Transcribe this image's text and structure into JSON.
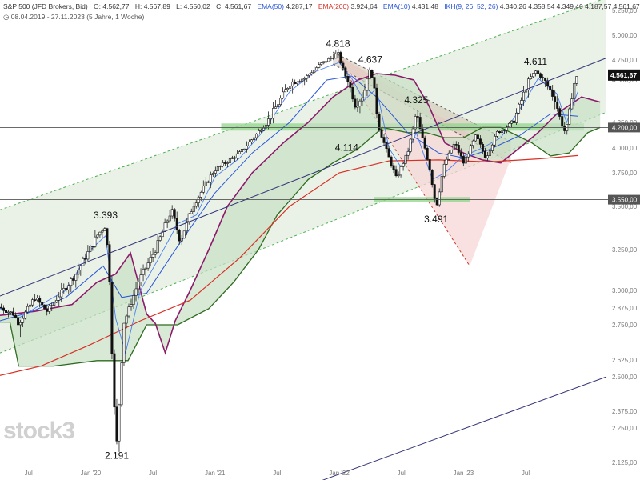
{
  "header": {
    "instrument": "S&P 500 (JFD Brokers, Bid)",
    "ohlc": {
      "open": "O: 4.562,77",
      "high": "H: 4.567,89",
      "low": "L: 4.550,02",
      "close": "C: 4.561,67"
    },
    "indicators": [
      {
        "label": "EMA(50)",
        "value": "4.287,17",
        "color": "#2a56d6"
      },
      {
        "label": "EMA(200)",
        "value": "3.924,64",
        "color": "#d93025"
      },
      {
        "label": "EMA(10)",
        "value": "4.431,48",
        "color": "#2a56d6"
      },
      {
        "label": "IKH(9, 26, 52, 26)",
        "value": "4.340,26  4.358,54  4.349,40  4.187,57  4.561,67",
        "color": "#2a56d6"
      }
    ],
    "period": "08.04.2019 - 27.11.2023",
    "range": "(5 Jahre, 1 Woche)"
  },
  "brand": "stock3",
  "colors": {
    "up": "#ffffff",
    "down": "#111111",
    "wick": "#222222",
    "ema50": "#2a56d6",
    "ema200": "#d93025",
    "ema10": "#2a56d6",
    "cloud_line_a": "#8b1a6b",
    "cloud_line_b": "#2e6b1f",
    "channel_fill": "#e6f0e3",
    "channel_edge": "#4caf50",
    "wedge_fill": "#f7d7d7",
    "wedge_edge": "#c0392b",
    "zone_fill": "#8fd68a",
    "trend": "#33337a"
  },
  "chart_data": {
    "type": "candlestick",
    "title": "S&P 500 (JFD Brokers, Bid)",
    "ylim": [
      2125,
      5375
    ],
    "y_ticks": [
      2125,
      2250,
      2375,
      2500,
      2625,
      2750,
      2875,
      3000,
      3250,
      3500,
      3750,
      4000,
      4250,
      4500,
      4750,
      5000,
      5250
    ],
    "y_tick_labels": [
      "2.125,00",
      "2.250,00",
      "2.375,00",
      "2.500,00",
      "2.625,00",
      "2.750,00",
      "2.875,00",
      "3.000,00",
      "3.250,00",
      "3.500,00",
      "3.750,00",
      "4.000,00",
      "4.250,00",
      "4.500,00",
      "4.750,00",
      "5.000,00",
      "5.250,00"
    ],
    "x_ticks": [
      {
        "label": "Jul",
        "t": 2019.5
      },
      {
        "label": "Jan '20",
        "t": 2020.0
      },
      {
        "label": "Jul",
        "t": 2020.5
      },
      {
        "label": "Jan '21",
        "t": 2021.0
      },
      {
        "label": "Jul",
        "t": 2021.5
      },
      {
        "label": "Jan '22",
        "t": 2022.0
      },
      {
        "label": "Jul",
        "t": 2022.5
      },
      {
        "label": "Jan '23",
        "t": 2023.0
      },
      {
        "label": "Jul",
        "t": 2023.5
      }
    ],
    "xlim": [
      2019.27,
      2024.15
    ],
    "price_path": [
      [
        2019.27,
        2880
      ],
      [
        2019.38,
        2830
      ],
      [
        2019.42,
        2760
      ],
      [
        2019.55,
        2950
      ],
      [
        2019.65,
        2850
      ],
      [
        2019.75,
        2970
      ],
      [
        2019.88,
        3100
      ],
      [
        2020.05,
        3330
      ],
      [
        2020.12,
        3393
      ],
      [
        2020.15,
        3100
      ],
      [
        2020.18,
        2480
      ],
      [
        2020.21,
        2191
      ],
      [
        2020.26,
        2750
      ],
      [
        2020.38,
        3050
      ],
      [
        2020.52,
        3250
      ],
      [
        2020.65,
        3480
      ],
      [
        2020.72,
        3300
      ],
      [
        2020.82,
        3500
      ],
      [
        2021.0,
        3780
      ],
      [
        2021.2,
        3950
      ],
      [
        2021.38,
        4200
      ],
      [
        2021.6,
        4480
      ],
      [
        2021.72,
        4520
      ],
      [
        2021.85,
        4700
      ],
      [
        2021.99,
        4818
      ],
      [
        2022.05,
        4550
      ],
      [
        2022.13,
        4350
      ],
      [
        2022.2,
        4420
      ],
      [
        2022.25,
        4637
      ],
      [
        2022.32,
        4200
      ],
      [
        2022.4,
        3900
      ],
      [
        2022.46,
        3700
      ],
      [
        2022.55,
        3950
      ],
      [
        2022.62,
        4325
      ],
      [
        2022.7,
        3950
      ],
      [
        2022.78,
        3491
      ],
      [
        2022.85,
        3850
      ],
      [
        2022.93,
        4050
      ],
      [
        2023.0,
        3850
      ],
      [
        2023.1,
        4120
      ],
      [
        2023.18,
        3900
      ],
      [
        2023.27,
        4150
      ],
      [
        2023.4,
        4250
      ],
      [
        2023.5,
        4450
      ],
      [
        2023.58,
        4611
      ],
      [
        2023.65,
        4500
      ],
      [
        2023.74,
        4380
      ],
      [
        2023.82,
        4150
      ],
      [
        2023.88,
        4450
      ],
      [
        2023.92,
        4562
      ]
    ],
    "ema10": [
      [
        2019.27,
        2870
      ],
      [
        2019.42,
        2800
      ],
      [
        2019.6,
        2900
      ],
      [
        2019.8,
        3000
      ],
      [
        2020.0,
        3250
      ],
      [
        2020.12,
        3330
      ],
      [
        2020.2,
        2800
      ],
      [
        2020.28,
        2650
      ],
      [
        2020.4,
        3000
      ],
      [
        2020.55,
        3200
      ],
      [
        2020.7,
        3400
      ],
      [
        2020.85,
        3450
      ],
      [
        2021.0,
        3720
      ],
      [
        2021.2,
        3900
      ],
      [
        2021.4,
        4180
      ],
      [
        2021.6,
        4430
      ],
      [
        2021.8,
        4600
      ],
      [
        2022.0,
        4720
      ],
      [
        2022.1,
        4520
      ],
      [
        2022.2,
        4380
      ],
      [
        2022.3,
        4450
      ],
      [
        2022.4,
        4000
      ],
      [
        2022.5,
        3800
      ],
      [
        2022.62,
        4150
      ],
      [
        2022.75,
        3700
      ],
      [
        2022.85,
        3750
      ],
      [
        2023.0,
        3920
      ],
      [
        2023.15,
        4000
      ],
      [
        2023.3,
        4100
      ],
      [
        2023.5,
        4380
      ],
      [
        2023.6,
        4520
      ],
      [
        2023.75,
        4420
      ],
      [
        2023.83,
        4250
      ],
      [
        2023.92,
        4431
      ]
    ],
    "ema50": [
      [
        2019.27,
        2780
      ],
      [
        2019.5,
        2840
      ],
      [
        2019.8,
        2950
      ],
      [
        2020.1,
        3150
      ],
      [
        2020.25,
        2950
      ],
      [
        2020.45,
        2980
      ],
      [
        2020.7,
        3270
      ],
      [
        2021.0,
        3600
      ],
      [
        2021.3,
        3950
      ],
      [
        2021.6,
        4250
      ],
      [
        2021.9,
        4500
      ],
      [
        2022.1,
        4550
      ],
      [
        2022.3,
        4400
      ],
      [
        2022.55,
        4150
      ],
      [
        2022.8,
        3950
      ],
      [
        2023.0,
        3900
      ],
      [
        2023.2,
        3980
      ],
      [
        2023.45,
        4120
      ],
      [
        2023.7,
        4300
      ],
      [
        2023.92,
        4287
      ]
    ],
    "ema200": [
      [
        2019.27,
        2510
      ],
      [
        2019.6,
        2580
      ],
      [
        2020.0,
        2680
      ],
      [
        2020.4,
        2780
      ],
      [
        2020.8,
        2930
      ],
      [
        2021.2,
        3200
      ],
      [
        2021.6,
        3500
      ],
      [
        2022.0,
        3750
      ],
      [
        2022.4,
        3870
      ],
      [
        2022.8,
        3880
      ],
      [
        2023.2,
        3860
      ],
      [
        2023.6,
        3890
      ],
      [
        2023.92,
        3924
      ]
    ],
    "ichimoku_span_a": [
      [
        2019.27,
        2820
      ],
      [
        2019.55,
        2850
      ],
      [
        2019.85,
        2900
      ],
      [
        2020.05,
        3050
      ],
      [
        2020.2,
        3100
      ],
      [
        2020.32,
        3230
      ],
      [
        2020.45,
        2830
      ],
      [
        2020.52,
        2760
      ],
      [
        2020.6,
        2650
      ],
      [
        2020.68,
        2780
      ],
      [
        2020.8,
        3000
      ],
      [
        2020.95,
        3250
      ],
      [
        2021.1,
        3500
      ],
      [
        2021.3,
        3750
      ],
      [
        2021.55,
        4050
      ],
      [
        2021.75,
        4250
      ],
      [
        2021.95,
        4400
      ],
      [
        2022.15,
        4500
      ],
      [
        2022.3,
        4580
      ],
      [
        2022.45,
        4560
      ],
      [
        2022.6,
        4500
      ],
      [
        2022.72,
        4350
      ],
      [
        2022.85,
        4050
      ],
      [
        2023.0,
        3950
      ],
      [
        2023.15,
        3880
      ],
      [
        2023.3,
        3850
      ],
      [
        2023.45,
        4000
      ],
      [
        2023.6,
        4150
      ],
      [
        2023.75,
        4300
      ],
      [
        2023.95,
        4400
      ],
      [
        2024.1,
        4370
      ]
    ],
    "ichimoku_span_b": [
      [
        2019.27,
        2770
      ],
      [
        2019.35,
        2770
      ],
      [
        2019.42,
        2580
      ],
      [
        2019.7,
        2580
      ],
      [
        2020.05,
        2620
      ],
      [
        2020.3,
        2620
      ],
      [
        2020.45,
        2750
      ],
      [
        2020.7,
        2750
      ],
      [
        2020.95,
        2870
      ],
      [
        2021.15,
        3050
      ],
      [
        2021.35,
        3250
      ],
      [
        2021.5,
        3450
      ],
      [
        2021.75,
        3700
      ],
      [
        2021.95,
        3850
      ],
      [
        2022.15,
        3990
      ],
      [
        2022.35,
        4200
      ],
      [
        2022.55,
        4150
      ],
      [
        2022.7,
        4150
      ],
      [
        2022.85,
        4100
      ],
      [
        2023.0,
        4100
      ],
      [
        2023.15,
        4200
      ],
      [
        2023.3,
        4200
      ],
      [
        2023.55,
        4050
      ],
      [
        2023.7,
        3920
      ],
      [
        2023.85,
        3950
      ],
      [
        2024.0,
        4150
      ],
      [
        2024.1,
        4200
      ]
    ],
    "annotations": [
      {
        "label": "3.393",
        "t": 2020.12,
        "v": 3393,
        "pos": "above"
      },
      {
        "label": "2.191",
        "t": 2020.21,
        "v": 2191,
        "pos": "below"
      },
      {
        "label": "4.818",
        "t": 2021.99,
        "v": 4818,
        "pos": "above"
      },
      {
        "label": "4.637",
        "t": 2022.25,
        "v": 4637,
        "pos": "above"
      },
      {
        "label": "4.325",
        "t": 2022.62,
        "v": 4325,
        "pos": "above"
      },
      {
        "label": "4.114",
        "t": 2022.06,
        "v": 4114,
        "pos": "below"
      },
      {
        "label": "3.491",
        "t": 2022.78,
        "v": 3491,
        "pos": "below"
      },
      {
        "label": "4.611",
        "t": 2023.58,
        "v": 4611,
        "pos": "above"
      }
    ],
    "horizontal_lines": [
      {
        "value": 4200,
        "label": "4.200,00"
      },
      {
        "value": 3550,
        "label": "3.550,00"
      }
    ],
    "last_price": {
      "value": 4561.67,
      "label": "4.561,67"
    },
    "support_zones": [
      {
        "t0": 2021.05,
        "t1": 2023.97,
        "v0": 4170,
        "v1": 4240
      },
      {
        "t0": 2022.28,
        "t1": 2023.05,
        "v0": 3535,
        "v1": 3570
      }
    ],
    "trend_channel": {
      "upper": [
        [
          2019.27,
          3480
        ],
        [
          2024.15,
          5375
        ]
      ],
      "lower": [
        [
          2019.27,
          2650
        ],
        [
          2024.15,
          4310
        ]
      ]
    },
    "wedge": {
      "upper": [
        [
          2021.95,
          4830
        ],
        [
          2023.38,
          4060
        ]
      ],
      "lower": [
        [
          2021.95,
          4700
        ],
        [
          2023.38,
          3850
        ]
      ],
      "cone": [
        [
          2021.95,
          4830
        ],
        [
          2023.05,
          3150
        ],
        [
          2023.38,
          3890
        ]
      ]
    },
    "trend_lines": [
      {
        "points": [
          [
            2019.27,
            2960
          ],
          [
            2024.15,
            4770
          ]
        ]
      },
      {
        "points": [
          [
            2021.5,
            2000
          ],
          [
            2024.15,
            2500
          ]
        ]
      }
    ]
  }
}
